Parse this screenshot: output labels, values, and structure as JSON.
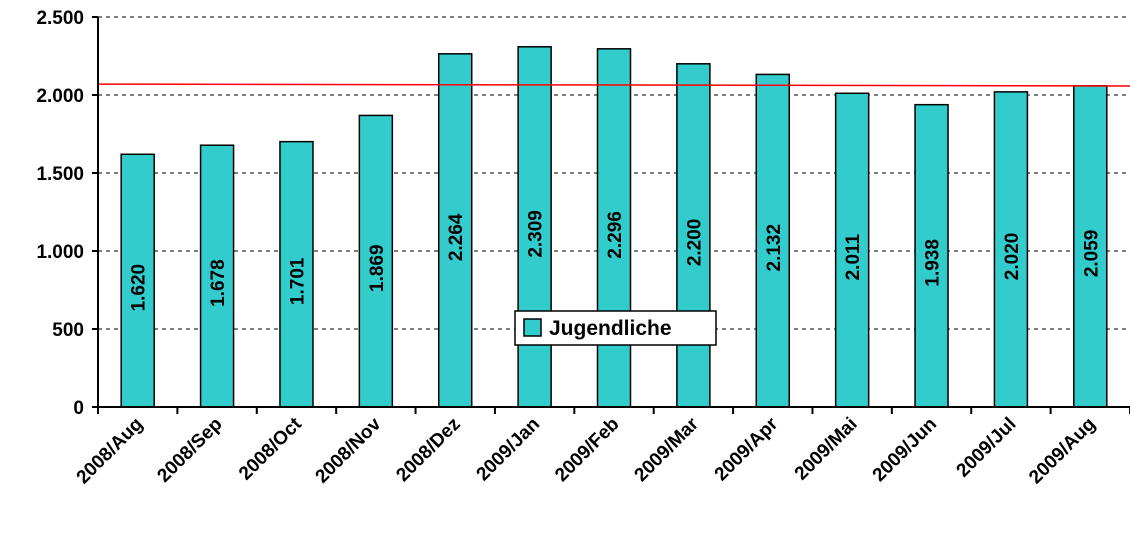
{
  "chart_data": {
    "type": "bar",
    "categories": [
      "2008/Aug",
      "2008/Sep",
      "2008/Oct",
      "2008/Nov",
      "2008/Dez",
      "2009/Jan",
      "2009/Feb",
      "2009/Mar",
      "2009/Apr",
      "2009/Mai",
      "2009/Jun",
      "2009/Jul",
      "2009/Aug"
    ],
    "series": [
      {
        "name": "Jugendliche",
        "values": [
          1620,
          1678,
          1701,
          1869,
          2264,
          2309,
          2296,
          2200,
          2132,
          2011,
          1938,
          2020,
          2059
        ],
        "data_labels": [
          "1.620",
          "1.678",
          "1.701",
          "1.869",
          "2.264",
          "2.309",
          "2.296",
          "2.200",
          "2.132",
          "2.011",
          "1.938",
          "2.020",
          "2.059"
        ],
        "color": "#33CCCC"
      }
    ],
    "y_ticks": [
      0,
      500,
      1000,
      1500,
      2000,
      2500
    ],
    "y_tick_labels": [
      "0",
      "500",
      "1.000",
      "1.500",
      "2.000",
      "2.500"
    ],
    "ylim": [
      0,
      2500
    ],
    "grid": "dashed horizontal",
    "trendline": {
      "color": "#FF0000",
      "start": 2070,
      "end": 2058
    },
    "legend": {
      "position": "center",
      "entries": [
        "Jugendliche"
      ]
    }
  }
}
